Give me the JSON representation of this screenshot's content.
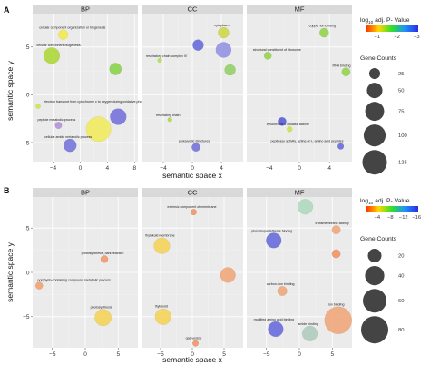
{
  "chart_data": [
    {
      "type": "scatter",
      "panel_label": "A",
      "xlabel": "semantic space x",
      "ylabel": "semantic space y",
      "facets": [
        {
          "name": "BP",
          "xticks": [
            -4,
            0,
            4,
            8
          ],
          "yticks": [
            -5,
            0,
            5
          ],
          "xlim": [
            -7,
            8.5
          ],
          "ylim": [
            -7,
            8.5
          ],
          "points": [
            {
              "label": "cellular component organization or biogenesis",
              "x": -2.5,
              "y": 6.3,
              "size": 20,
              "color": "#f4e93a",
              "faded": false
            },
            {
              "label": "cellular component biogenesis",
              "x": -4.2,
              "y": 4.1,
              "size": 55,
              "color": "#a8d42a",
              "faded": false
            },
            {
              "label": "",
              "x": 5.2,
              "y": 2.7,
              "size": 30,
              "color": "#7fd13a",
              "faded": false
            },
            {
              "label": "electron transport from cytochrome c to oxygen during oxidative phosphorylation",
              "x": -6.2,
              "y": -1.2,
              "size": 5,
              "color": "#c8e63a",
              "faded": false
            },
            {
              "label": "",
              "x": 5.6,
              "y": -2.3,
              "size": 55,
              "color": "#6a66d8",
              "faded": false
            },
            {
              "label": "",
              "x": 2.7,
              "y": -3.6,
              "size": 130,
              "color": "#f0ea50",
              "faded": false
            },
            {
              "label": "peptide metabolic process",
              "x": -3.2,
              "y": -3.2,
              "size": 10,
              "color": "#a98ad8",
              "faded": false
            },
            {
              "label": "cellular amide metabolic process",
              "x": -1.5,
              "y": -5.3,
              "size": 35,
              "color": "#6a6ad8",
              "faded": false
            }
          ]
        },
        {
          "name": "CC",
          "xticks": [
            -4,
            0,
            4
          ],
          "yticks": [
            -5,
            0,
            5
          ],
          "xlim": [
            -7,
            7
          ],
          "ylim": [
            -7,
            8.5
          ],
          "points": [
            {
              "label": "cytoplasm",
              "x": 4.3,
              "y": 6.5,
              "size": 25,
              "color": "#c8d63a",
              "faded": false
            },
            {
              "label": "",
              "x": 0.8,
              "y": 5.2,
              "size": 25,
              "color": "#5a5ed8",
              "faded": false
            },
            {
              "label": "",
              "x": 4.3,
              "y": 4.7,
              "size": 50,
              "color": "#8a8ae0",
              "faded": false
            },
            {
              "label": "respiratory chain complex IV",
              "x": -4.5,
              "y": 3.6,
              "size": 4,
              "color": "#a8e03a",
              "faded": false
            },
            {
              "label": "",
              "x": 5.2,
              "y": 2.6,
              "size": 25,
              "color": "#8acd5a",
              "faded": false
            },
            {
              "label": "respiratory chain",
              "x": -3.1,
              "y": -2.6,
              "size": 4,
              "color": "#a8d63a",
              "faded": false
            },
            {
              "label": "prokaryotic structures",
              "x": 0.5,
              "y": -5.5,
              "size": 15,
              "color": "#6a66d8",
              "faded": false
            }
          ]
        },
        {
          "name": "MF",
          "xticks": [
            -4,
            0,
            4
          ],
          "yticks": [
            -5,
            0,
            5
          ],
          "xlim": [
            -7,
            7
          ],
          "ylim": [
            -7,
            8.5
          ],
          "points": [
            {
              "label": "copper ion binding",
              "x": 3.3,
              "y": 6.5,
              "size": 18,
              "color": "#8ad23a",
              "faded": false
            },
            {
              "label": "structural constituent of ribosome",
              "x": -4.2,
              "y": 4.1,
              "size": 12,
              "color": "#8ad23a",
              "faded": false
            },
            {
              "label": "RNA binding",
              "x": 6.2,
              "y": 2.4,
              "size": 15,
              "color": "#8ad23a",
              "faded": false
            },
            {
              "label": "",
              "x": -2.3,
              "y": -2.8,
              "size": 15,
              "color": "#4a4ed8",
              "faded": false
            },
            {
              "label": "cytochrome-c oxidase activity",
              "x": -1.3,
              "y": -3.6,
              "size": 6,
              "color": "#c8e03a",
              "faded": false
            },
            {
              "label": "peptidase activity, acting on L-amino acid peptides",
              "x": 5.5,
              "y": -5.4,
              "size": 8,
              "color": "#5a5ed8",
              "faded": false
            }
          ]
        }
      ],
      "legend": {
        "color_title": "log10 adj. P- Value",
        "color_ticks": [
          -1,
          -2,
          -3
        ],
        "color_stops": [
          "#ff2a00",
          "#ffd800",
          "#2ee02e",
          "#2090ff",
          "#2c2ce0"
        ],
        "size_title": "Gene Counts",
        "size_values": [
          25,
          50,
          75,
          100,
          125
        ]
      }
    },
    {
      "type": "scatter",
      "panel_label": "B",
      "xlabel": "semantic space x",
      "ylabel": "semantic space y",
      "facets": [
        {
          "name": "BP",
          "xticks": [
            -5,
            0,
            5
          ],
          "yticks": [
            -5,
            0,
            5
          ],
          "xlim": [
            -8,
            8
          ],
          "ylim": [
            -8.5,
            8.5
          ],
          "points": [
            {
              "label": "photosynthesis, dark reaction",
              "x": 2.9,
              "y": 1.5,
              "size": 6,
              "color": "#f09060",
              "faded": false
            },
            {
              "label": "porphyrin-containing compound metabolic process",
              "x": -7.0,
              "y": -1.5,
              "size": 6,
              "color": "#f09a60",
              "faded": false
            },
            {
              "label": "photosynthesis",
              "x": 2.7,
              "y": -5.1,
              "size": 30,
              "color": "#f4d04a",
              "faded": false
            }
          ]
        },
        {
          "name": "CC",
          "xticks": [
            -5,
            0,
            5
          ],
          "yticks": [
            -5,
            0,
            5
          ],
          "xlim": [
            -8,
            8
          ],
          "ylim": [
            -8.5,
            8.5
          ],
          "points": [
            {
              "label": "extrinsic component of membrane",
              "x": 0.2,
              "y": 6.8,
              "size": 4,
              "color": "#f08a5a",
              "faded": false
            },
            {
              "label": "thylakoid membrane",
              "x": -4.8,
              "y": 3.0,
              "size": 28,
              "color": "#f4d04a",
              "faded": false
            },
            {
              "label": "",
              "x": 5.6,
              "y": -0.3,
              "size": 25,
              "color": "#f0a070",
              "faded": false
            },
            {
              "label": "thylakoid",
              "x": -4.6,
              "y": -5.0,
              "size": 28,
              "color": "#f4d04a",
              "faded": false
            },
            {
              "label": "gas vesicle",
              "x": 0.5,
              "y": -8.0,
              "size": 4,
              "color": "#f08a5a",
              "faded": false
            }
          ]
        },
        {
          "name": "MF",
          "xticks": [
            -5,
            0,
            5
          ],
          "yticks": [
            -5,
            0,
            5
          ],
          "xlim": [
            -8,
            8
          ],
          "ylim": [
            -8.5,
            8.5
          ],
          "points": [
            {
              "label": "",
              "x": 0.9,
              "y": 7.4,
              "size": 25,
              "color": "#a8d8b8",
              "faded": false
            },
            {
              "label": "transmembrane activity",
              "x": 5.6,
              "y": 4.8,
              "size": 8,
              "color": "#f0a070",
              "faded": false
            },
            {
              "label": "phosphopantetheine binding",
              "x": -3.9,
              "y": 3.6,
              "size": 25,
              "color": "#5a5ed8",
              "faded": false
            },
            {
              "label": "",
              "x": 5.6,
              "y": 2.1,
              "size": 8,
              "color": "#f08a5a",
              "faded": false
            },
            {
              "label": "carbon-iron binding",
              "x": -2.6,
              "y": -2.1,
              "size": 10,
              "color": "#f0a070",
              "faded": false
            },
            {
              "label": "ion binding",
              "x": 5.9,
              "y": -5.4,
              "size": 80,
              "color": "#f0a070",
              "faded": false
            },
            {
              "label": "modified amino acid binding",
              "x": -3.6,
              "y": -6.4,
              "size": 25,
              "color": "#5a5ed8",
              "faded": false
            },
            {
              "label": "amide binding",
              "x": 1.6,
              "y": -6.9,
              "size": 25,
              "color": "#a8c8b8",
              "faded": false
            }
          ]
        }
      ],
      "legend": {
        "color_title": "log10 adj. P- Value",
        "color_ticks": [
          -4,
          -8,
          -12,
          -16
        ],
        "color_stops": [
          "#ff2a00",
          "#ffd800",
          "#2ee02e",
          "#2090ff",
          "#2c2ce0"
        ],
        "size_title": "Gene Counts",
        "size_values": [
          20,
          40,
          60,
          80
        ]
      }
    }
  ]
}
